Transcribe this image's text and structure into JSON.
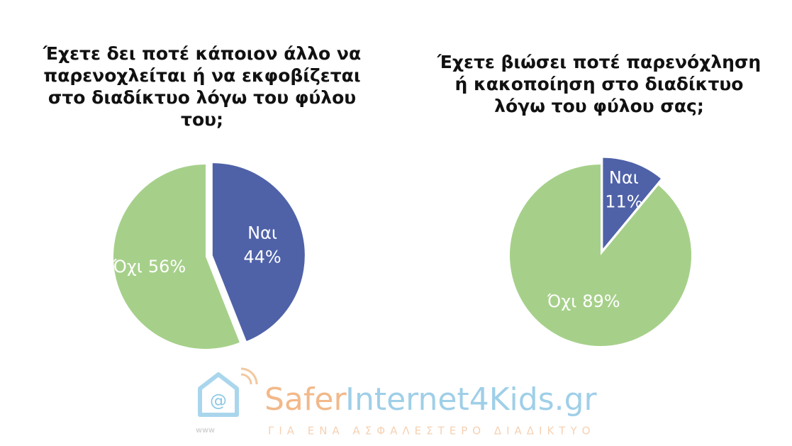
{
  "chart_data": [
    {
      "type": "pie",
      "title": "Έχετε δει ποτέ κάποιον άλλο να παρενοχλείται ή να εκφοβίζεται στο διαδίκτυο λόγω του φύλου του;",
      "categories": [
        "Ναι",
        "Όχι"
      ],
      "values": [
        44,
        56
      ],
      "value_labels": [
        "44%",
        "56%"
      ],
      "colors": [
        "#4f62a8",
        "#a6d08a"
      ]
    },
    {
      "type": "pie",
      "title": "Έχετε βιώσει ποτέ παρενόχληση ή κακοποίηση στο διαδίκτυο λόγω του φύλου σας;",
      "categories": [
        "Ναι",
        "Όχι"
      ],
      "values": [
        11,
        89
      ],
      "value_labels": [
        "11%",
        "89%"
      ],
      "colors": [
        "#4f62a8",
        "#a6d08a"
      ]
    }
  ],
  "logo": {
    "name_a": "Safer",
    "name_b": "Internet4Kids.gr",
    "tagline": "ΓΙΑ ΕΝΑ ΑΣΦΑΛΕΣΤΕΡΟ ΔΙΑΔΙΚΤΥΟ",
    "www": "www"
  }
}
